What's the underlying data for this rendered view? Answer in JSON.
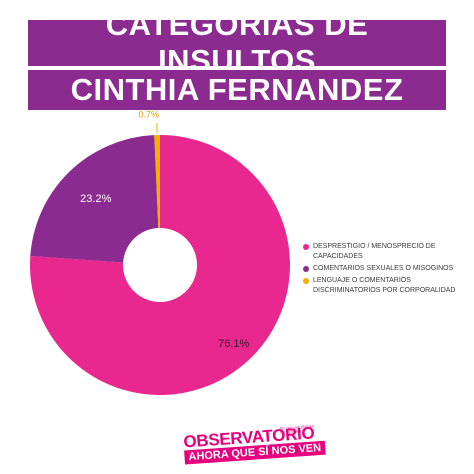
{
  "header": {
    "title_line1": "CATEGORIAS DE INSULTOS",
    "title_line2": "CINTHIA FERNANDEZ"
  },
  "chart_data": {
    "type": "donut",
    "slices": [
      {
        "label": "DESPRESTIGIO / MENOSPRECIO DE CAPACIDADES",
        "value": 76.1,
        "display": "76.1%",
        "color": "#e9288f"
      },
      {
        "label": "COMENTARIOS SEXUALES O MISOGINOS",
        "value": 23.2,
        "display": "23.2%",
        "color": "#8b2a8f"
      },
      {
        "label": "LENGUAJE O COMENTARIOS DISCRIMINATORIOS POR CORPORALIDAD",
        "value": 0.7,
        "display": "0.7%",
        "color": "#f4b000"
      }
    ],
    "start": "12 o'clock, clockwise",
    "legend_position": "right"
  },
  "logo": {
    "top": "OBSERVATORIO",
    "sub": "DE LAS VIOLENCIAS DE GÉNERO",
    "bottom": "AHORA QUE SÍ NOS VEN"
  }
}
